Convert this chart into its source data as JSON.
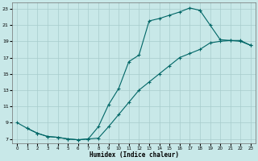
{
  "xlabel": "Humidex (Indice chaleur)",
  "bg_color": "#c8e8e8",
  "grid_color": "#a8cccc",
  "line_color": "#006666",
  "xlim": [
    -0.5,
    23.5
  ],
  "ylim": [
    6.5,
    23.8
  ],
  "xticks": [
    0,
    1,
    2,
    3,
    4,
    5,
    6,
    7,
    8,
    9,
    10,
    11,
    12,
    13,
    14,
    15,
    16,
    17,
    18,
    19,
    20,
    21,
    22,
    23
  ],
  "yticks": [
    7,
    9,
    11,
    13,
    15,
    17,
    19,
    21,
    23
  ],
  "curve1_x": [
    0,
    1,
    2,
    3,
    4,
    5,
    6,
    7,
    8,
    9,
    10,
    11,
    12,
    13,
    14,
    15,
    16,
    17,
    18
  ],
  "curve1_y": [
    9.0,
    8.3,
    7.7,
    7.3,
    7.2,
    7.0,
    6.9,
    7.0,
    8.5,
    11.2,
    13.2,
    16.5,
    17.3,
    21.5,
    21.8,
    22.2,
    22.6,
    23.1,
    22.8
  ],
  "curve2_x": [
    18,
    19,
    20,
    21,
    22,
    23
  ],
  "curve2_y": [
    22.8,
    21.0,
    19.2,
    19.1,
    19.1,
    18.5
  ],
  "curve3_x": [
    1,
    2,
    3,
    4,
    5,
    6,
    7,
    8,
    9,
    10,
    11,
    12,
    13,
    14,
    15,
    16,
    17,
    18,
    19,
    20,
    21,
    22,
    23
  ],
  "curve3_y": [
    8.3,
    7.7,
    7.3,
    7.2,
    7.0,
    6.9,
    7.0,
    7.1,
    8.5,
    10.0,
    11.5,
    13.0,
    14.0,
    15.0,
    16.0,
    17.0,
    17.5,
    18.0,
    18.8,
    19.0,
    19.1,
    19.0,
    18.5
  ]
}
